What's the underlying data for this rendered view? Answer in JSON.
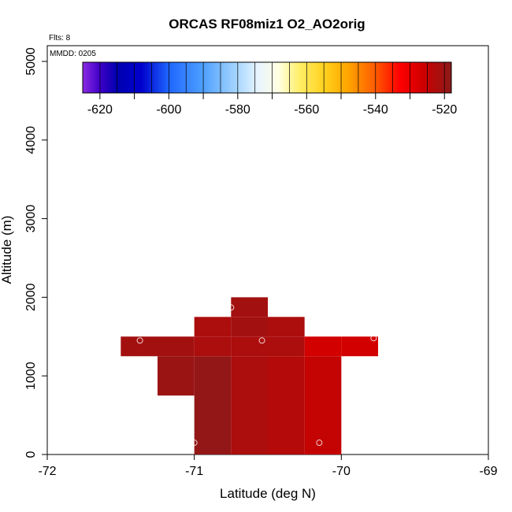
{
  "chart_data": {
    "type": "heatmap",
    "title": "ORCAS RF08miz1 O2_AO2orig",
    "flts_label": "Flts: 8",
    "mmdd_label": "MMDD: 0205",
    "xlabel": "Latitude (deg N)",
    "ylabel": "Altitude (m)",
    "xlim": [
      -72,
      -69
    ],
    "ylim": [
      0,
      5200
    ],
    "x_ticks": [
      "-72",
      "-71",
      "-70",
      "-69"
    ],
    "x_tick_values": [
      -72,
      -71,
      -70,
      -69
    ],
    "y_ticks": [
      "0",
      "1000",
      "2000",
      "3000",
      "4000",
      "5000"
    ],
    "y_tick_values": [
      0,
      1000,
      2000,
      3000,
      4000,
      5000
    ],
    "colorbar": {
      "range": [
        -625,
        -518
      ],
      "ticks": [
        "-620",
        "-600",
        "-580",
        "-560",
        "-540",
        "-520"
      ],
      "tick_values": [
        -620,
        -600,
        -580,
        -560,
        -540,
        -520
      ],
      "stops": [
        {
          "v": -625,
          "c": "#8a2be2"
        },
        {
          "v": -620,
          "c": "#3f00c8"
        },
        {
          "v": -615,
          "c": "#0000b0"
        },
        {
          "v": -608,
          "c": "#0000cd"
        },
        {
          "v": -600,
          "c": "#1e66ff"
        },
        {
          "v": -590,
          "c": "#4ea0ff"
        },
        {
          "v": -580,
          "c": "#a9d8ff"
        },
        {
          "v": -574,
          "c": "#e8f4ff"
        },
        {
          "v": -568,
          "c": "#ffffe0"
        },
        {
          "v": -562,
          "c": "#ffee66"
        },
        {
          "v": -555,
          "c": "#ffd21e"
        },
        {
          "v": -548,
          "c": "#ffa500"
        },
        {
          "v": -540,
          "c": "#ff5a00"
        },
        {
          "v": -533,
          "c": "#ff0000"
        },
        {
          "v": -526,
          "c": "#cc0000"
        },
        {
          "v": -518,
          "c": "#8b1a1a"
        }
      ]
    },
    "cells": [
      {
        "x0": -71.0,
        "x1": -70.75,
        "y0": 0,
        "y1": 1250,
        "value": -519
      },
      {
        "x0": -70.75,
        "x1": -70.5,
        "y0": 0,
        "y1": 1250,
        "value": -522
      },
      {
        "x0": -70.5,
        "x1": -70.25,
        "y0": 0,
        "y1": 1250,
        "value": -523
      },
      {
        "x0": -70.25,
        "x1": -70.0,
        "y0": 0,
        "y1": 1250,
        "value": -525
      },
      {
        "x0": -71.25,
        "x1": -71.0,
        "y0": 750,
        "y1": 1250,
        "value": -520
      },
      {
        "x0": -71.5,
        "x1": -71.25,
        "y0": 1250,
        "y1": 1500,
        "value": -521
      },
      {
        "x0": -71.25,
        "x1": -71.0,
        "y0": 1250,
        "y1": 1500,
        "value": -521
      },
      {
        "x0": -71.0,
        "x1": -70.75,
        "y0": 1250,
        "y1": 1500,
        "value": -522
      },
      {
        "x0": -70.75,
        "x1": -70.5,
        "y0": 1250,
        "y1": 1500,
        "value": -522
      },
      {
        "x0": -70.5,
        "x1": -70.25,
        "y0": 1250,
        "y1": 1500,
        "value": -522
      },
      {
        "x0": -70.25,
        "x1": -70.0,
        "y0": 1250,
        "y1": 1500,
        "value": -527
      },
      {
        "x0": -70.0,
        "x1": -69.75,
        "y0": 1250,
        "y1": 1500,
        "value": -527
      },
      {
        "x0": -71.0,
        "x1": -70.75,
        "y0": 1500,
        "y1": 1750,
        "value": -522
      },
      {
        "x0": -70.75,
        "x1": -70.5,
        "y0": 1500,
        "y1": 1750,
        "value": -521
      },
      {
        "x0": -70.5,
        "x1": -70.25,
        "y0": 1500,
        "y1": 1750,
        "value": -522
      },
      {
        "x0": -70.75,
        "x1": -70.5,
        "y0": 1750,
        "y1": 2000,
        "value": -521
      }
    ],
    "flight_points": [
      {
        "x": -71.0,
        "y": 150
      },
      {
        "x": -70.15,
        "y": 150
      },
      {
        "x": -71.37,
        "y": 1450
      },
      {
        "x": -70.54,
        "y": 1450
      },
      {
        "x": -69.78,
        "y": 1480
      },
      {
        "x": -70.75,
        "y": 1870
      }
    ]
  }
}
